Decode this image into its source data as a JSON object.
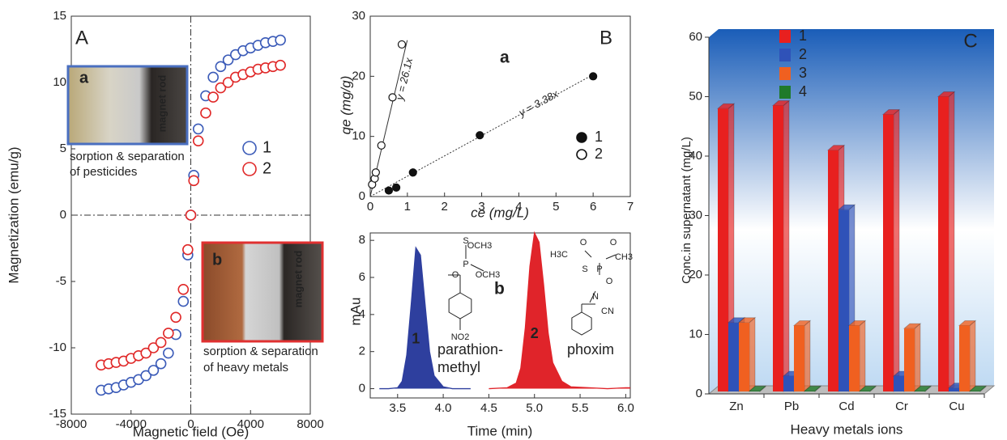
{
  "chart_data": [
    {
      "type": "scatter",
      "panel_label": "A",
      "x_label": "Magnetic field (Oe)",
      "y_label": "Magnetization (emu/g)",
      "xlim": [
        -8000,
        8000
      ],
      "xticks": [
        -8000,
        -4000,
        0,
        4000,
        8000
      ],
      "ylim": [
        -15,
        15
      ],
      "yticks": [
        -15,
        -10,
        -5,
        0,
        5,
        10,
        15
      ],
      "annotations": [
        "a",
        "magnet rod",
        "sorption & separation",
        "of pesticides",
        "b",
        "magnet rod",
        "sorption & separation",
        "of heavy metals"
      ],
      "series": [
        {
          "name": "1",
          "color": "#3b5bb8",
          "marker": "open",
          "x": [
            -6000,
            -5500,
            -5000,
            -4500,
            -4000,
            -3500,
            -3000,
            -2500,
            -2000,
            -1500,
            -1000,
            -500,
            -200,
            0,
            200,
            500,
            1000,
            1500,
            2000,
            2500,
            3000,
            3500,
            4000,
            4500,
            5000,
            5500,
            6000
          ],
          "values": [
            -13.2,
            -13.1,
            -13.0,
            -12.8,
            -12.6,
            -12.4,
            -12.1,
            -11.7,
            -11.2,
            -10.4,
            -9.0,
            -6.5,
            -3,
            0,
            3,
            6.5,
            9.0,
            10.4,
            11.2,
            11.7,
            12.1,
            12.4,
            12.6,
            12.8,
            13.0,
            13.1,
            13.2
          ]
        },
        {
          "name": "2",
          "color": "#e02828",
          "marker": "open",
          "x": [
            -6000,
            -5500,
            -5000,
            -4500,
            -4000,
            -3500,
            -3000,
            -2500,
            -2000,
            -1500,
            -1000,
            -500,
            -200,
            0,
            200,
            500,
            1000,
            1500,
            2000,
            2500,
            3000,
            3500,
            4000,
            4500,
            5000,
            5500,
            6000
          ],
          "values": [
            -11.3,
            -11.2,
            -11.1,
            -11.0,
            -10.8,
            -10.6,
            -10.4,
            -10.0,
            -9.6,
            -8.9,
            -7.7,
            -5.6,
            -2.6,
            0,
            2.6,
            5.6,
            7.7,
            8.9,
            9.6,
            10.0,
            10.4,
            10.6,
            10.8,
            11.0,
            11.1,
            11.2,
            11.3
          ]
        }
      ]
    },
    {
      "type": "scatter",
      "panel_label": "B",
      "sub_label": "a",
      "x_label": "ce (mg/L)",
      "y_label": "qe (mg/g)",
      "xlim": [
        0,
        7
      ],
      "xticks": [
        0,
        1,
        2,
        3,
        4,
        5,
        6,
        7
      ],
      "ylim": [
        0,
        30
      ],
      "yticks": [
        0,
        10,
        20,
        30
      ],
      "fits": [
        {
          "label": "y = 26.1x",
          "slope": 26.1,
          "style": "solid"
        },
        {
          "label": "y = 3.38x",
          "slope": 3.38,
          "style": "dotted"
        }
      ],
      "series": [
        {
          "name": "1",
          "color": "#111111",
          "marker": "filled",
          "x": [
            0.5,
            0.7,
            1.15,
            2.95,
            6
          ],
          "values": [
            1,
            1.5,
            4,
            10.2,
            20
          ]
        },
        {
          "name": "2",
          "color": "#111111",
          "marker": "open",
          "x": [
            0.05,
            0.12,
            0.15,
            0.3,
            0.6,
            0.85
          ],
          "values": [
            2,
            3,
            4,
            8.5,
            16.5,
            25.3
          ]
        }
      ]
    },
    {
      "type": "line",
      "sub_label": "b",
      "x_label": "Time (min)",
      "y_label": "mAu",
      "xlim": [
        3.2,
        6.05
      ],
      "xticks": [
        3.5,
        {
          "value": 4,
          "label": "4.0"
        },
        4.5,
        {
          "value": 5,
          "label": "5.0"
        },
        5.5,
        {
          "value": 6,
          "label": "6.0"
        }
      ],
      "ylim": [
        -0.5,
        8.4
      ],
      "yticks": [
        0,
        2,
        4,
        6,
        8
      ],
      "x": [
        3.3,
        3.4,
        3.5,
        3.55,
        3.6,
        3.65,
        3.7,
        3.75,
        3.8,
        3.85,
        3.9,
        4.0,
        4.1,
        4.3,
        4.5,
        4.7,
        4.8,
        4.85,
        4.9,
        4.95,
        5.0,
        5.05,
        5.1,
        5.15,
        5.2,
        5.3,
        5.4,
        5.6,
        5.8,
        6.0,
        6.05
      ],
      "series": [
        {
          "name": "1",
          "color": "#2e3f9e",
          "values": [
            0,
            0,
            0.05,
            0.4,
            1.8,
            4.6,
            7.6,
            7.2,
            4.6,
            2.0,
            0.7,
            0.1,
            0,
            0,
            null,
            null,
            null,
            null,
            null,
            null,
            null,
            null,
            null,
            null,
            null,
            null,
            null,
            null,
            null,
            null,
            null
          ]
        },
        {
          "name": "2",
          "color": "#e0242a",
          "values": [
            null,
            null,
            null,
            null,
            null,
            null,
            null,
            null,
            null,
            null,
            null,
            null,
            null,
            null,
            0,
            0.05,
            0.3,
            1.1,
            3.3,
            6.6,
            8.4,
            7.9,
            5.6,
            3.0,
            1.4,
            0.4,
            0.1,
            0.05,
            0,
            0.05,
            0.05
          ]
        }
      ],
      "compounds": [
        "parathion-",
        "methyl",
        "phoxim"
      ],
      "structures": [
        [
          "S",
          "OCH3",
          "P",
          "O",
          "OCH3",
          "NO2"
        ],
        [
          "H3C",
          "O",
          "O",
          "CH3",
          "S",
          "P",
          "O",
          "N",
          "CN"
        ]
      ]
    },
    {
      "type": "bar3d",
      "panel_label": "C",
      "x_label": "Heavy metals ions",
      "y_label": "Conc.in supernatant (mg/L)",
      "categories": [
        "Zn",
        "Pb",
        "Cd",
        "Cr",
        "Cu"
      ],
      "ylim": [
        0,
        60
      ],
      "yticks": [
        0,
        10,
        20,
        30,
        40,
        50,
        60
      ],
      "series": [
        {
          "name": "1",
          "color": "#e8201f",
          "values": [
            48,
            48.5,
            41,
            47,
            50
          ]
        },
        {
          "name": "2",
          "color": "#2f52b8",
          "values": [
            12,
            3,
            31,
            3,
            1
          ]
        },
        {
          "name": "3",
          "color": "#f06020",
          "values": [
            12,
            11.5,
            11.5,
            11,
            11.5
          ]
        },
        {
          "name": "4",
          "color": "#1f7a2a",
          "values": [
            0.5,
            0.5,
            0.5,
            0.5,
            0.5
          ]
        }
      ]
    }
  ]
}
